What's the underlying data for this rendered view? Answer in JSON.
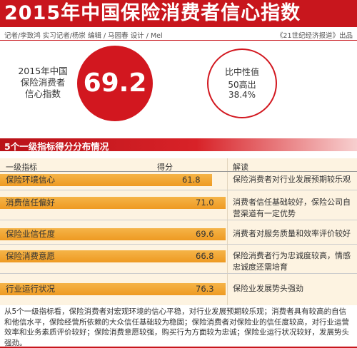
{
  "header": {
    "title": "2015年中国保险消费者信心指数"
  },
  "credits": {
    "left": "记者/李致鸿 实习记者/杨崇 编辑 / 马园春 设计 / Mel",
    "right": "《21世纪经济报道》出品"
  },
  "summary": {
    "label_lines": [
      "2015年中国",
      "保险消费者",
      "信心指数"
    ],
    "index_value": "69.2",
    "compare_lines": [
      "比中性值",
      "50高出",
      "38.4%"
    ]
  },
  "section": {
    "title": "5个一级指标得分分布情况"
  },
  "table": {
    "headers": {
      "indicator": "一级指标",
      "score": "得分",
      "interpretation": "解读"
    },
    "rows": [
      {
        "name": "保险环境信心",
        "score": "61.8",
        "value": 61.8,
        "interpretation": "保险消费者对行业发展预期较乐观"
      },
      {
        "name": "消费信任偏好",
        "score": "71.0",
        "value": 71.0,
        "interpretation": "消费者信任基础较好，保险公司自营渠道有一定优势"
      },
      {
        "name": "保险业信任度",
        "score": "69.6",
        "value": 69.6,
        "interpretation": "消费者对服务质量和效率评价较好"
      },
      {
        "name": "保险消费意愿",
        "score": "66.8",
        "value": 66.8,
        "interpretation": "保险消费者行为忠诚度较高，情感忠诚度还需培育"
      },
      {
        "name": "行业运行状况",
        "score": "76.3",
        "value": 76.3,
        "interpretation": "保险业发展势头强劲"
      }
    ]
  },
  "footnote": "从5个一级指标看，保险消费者对宏观环境的信心平稳，对行业发展预期较乐观；消费者具有较高的自信和他信水平，保险经营所依赖的大众信任基础较为稳固；保险消费者对保险业的信任度较高，对行业运营效率和业务素质评价较好；保险消费意愿较强，购买行为方面较为忠诚；保险业运行状况较好，发展势头强劲。",
  "colors": {
    "brand_red": "#c8161d",
    "bar_orange": "#f0a030",
    "table_background": "#fdf3e1"
  }
}
